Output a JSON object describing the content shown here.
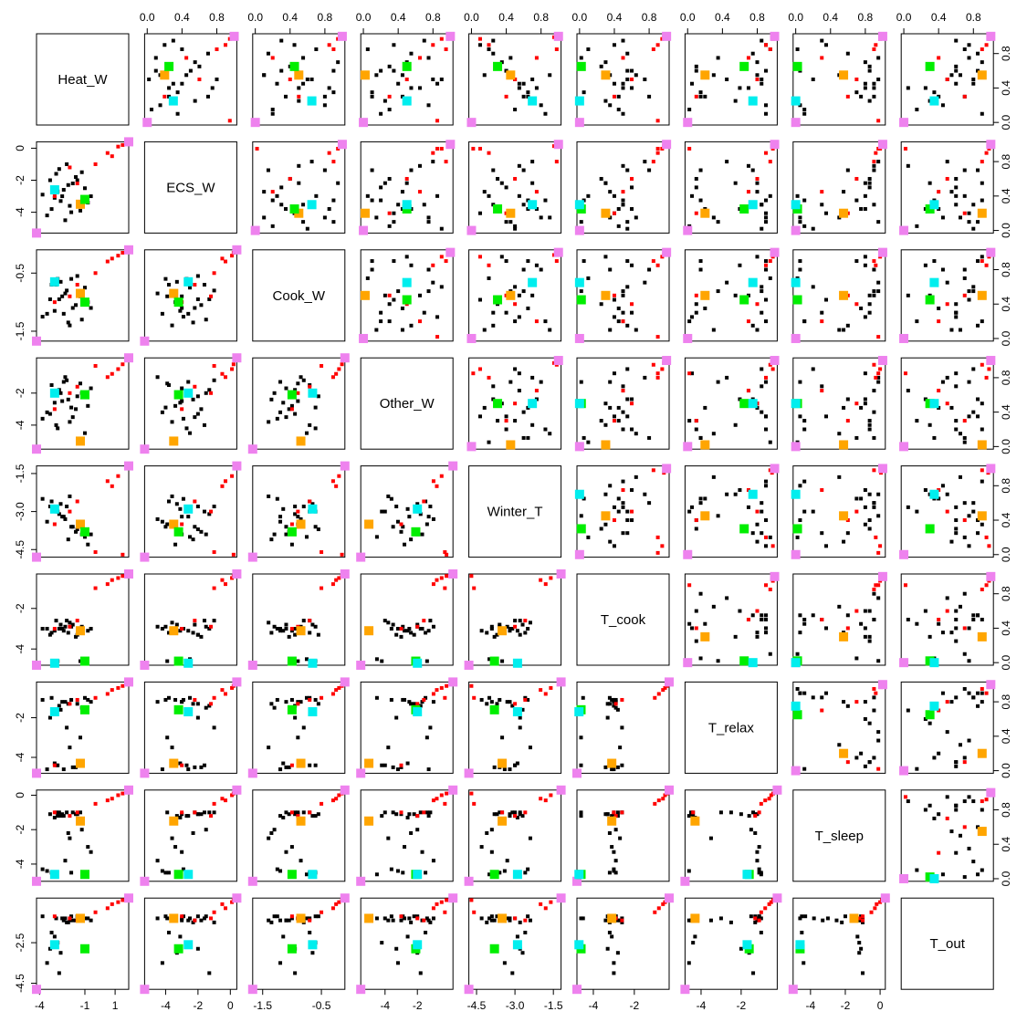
{
  "chart_data": {
    "type": "scatter-matrix",
    "scaled_lim": [
      -0.03,
      1.03
    ],
    "scaled_ticks": [
      {
        "value": 0,
        "label": "0.0"
      },
      {
        "value": 0.4,
        "label": "0.4"
      },
      {
        "value": 0.8,
        "label": "0.8"
      }
    ],
    "variables": [
      {
        "name": "Heat_W",
        "lim": [
          -4.2,
          1.9
        ],
        "ticks": [
          -4,
          -1,
          1
        ]
      },
      {
        "name": "ECS_W",
        "lim": [
          -5.3,
          0.4
        ],
        "ticks": [
          -4,
          -2,
          0
        ]
      },
      {
        "name": "Cook_W",
        "lim": [
          -1.67,
          -0.1
        ],
        "ticks": [
          -1.5,
          -0.5
        ]
      },
      {
        "name": "Other_W",
        "lim": [
          -5.5,
          0.2
        ],
        "ticks": [
          -4,
          -2
        ]
      },
      {
        "name": "Winter_T",
        "lim": [
          -4.8,
          -1.2
        ],
        "ticks": [
          {
            "value": -4.5,
            "label": "-4.5"
          },
          {
            "value": -3,
            "label": "-3.0"
          },
          {
            "value": -1.5,
            "label": "-1.5"
          }
        ]
      },
      {
        "name": "T_cook",
        "lim": [
          -4.8,
          -0.3
        ],
        "ticks": [
          -4,
          -2
        ]
      },
      {
        "name": "T_relax",
        "lim": [
          -4.8,
          -0.2
        ],
        "ticks": [
          -4,
          -2
        ]
      },
      {
        "name": "T_sleep",
        "lim": [
          -5,
          0.3
        ],
        "ticks": [
          -4,
          -2,
          0
        ]
      },
      {
        "name": "T_out",
        "lim": [
          -4.8,
          -0.3
        ],
        "ticks": [
          -4.5,
          -2.5
        ]
      }
    ],
    "groups": [
      {
        "color": "#000000",
        "marker": "small",
        "points": [
          {
            "raw": [
              -2.5,
              -3.0,
              -0.9,
              -2.5,
              -3.2,
              -3.0,
              -1.2,
              -1.1,
              -1.3
            ],
            "scaled": [
              0.45,
              0.3,
              0.55,
              0.4,
              0.6,
              0.5,
              0.85,
              0.9,
              0.8
            ]
          },
          {
            "raw": [
              -1.8,
              -2.2,
              -1.1,
              -3.5,
              -3.6,
              -2.8,
              -4.5,
              -1.0,
              -1.4
            ],
            "scaled": [
              0.6,
              0.5,
              0.3,
              0.2,
              0.4,
              0.6,
              0.1,
              0.85,
              0.6
            ]
          },
          {
            "raw": [
              -3.2,
              -3.8,
              -0.7,
              -1.5,
              -2.6,
              -3.2,
              -1.0,
              -4.5,
              -2.0
            ],
            "scaled": [
              0.2,
              0.15,
              0.8,
              0.75,
              0.8,
              0.35,
              0.9,
              0.05,
              0.45
            ]
          },
          {
            "raw": [
              -1.2,
              -1.5,
              -1.3,
              -2.0,
              -3.9,
              -2.9,
              -1.5,
              -2.0,
              -1.2
            ],
            "scaled": [
              0.8,
              0.7,
              0.15,
              0.55,
              0.25,
              0.55,
              0.75,
              0.6,
              0.85
            ]
          },
          {
            "raw": [
              -2.8,
              -2.7,
              -0.6,
              -4.2,
              -3.0,
              -4.6,
              -4.4,
              -1.2,
              -2.5
            ],
            "scaled": [
              0.35,
              0.35,
              0.9,
              0.1,
              0.65,
              0.05,
              0.15,
              0.7,
              0.35
            ]
          },
          {
            "raw": [
              -0.8,
              -3.4,
              -1.0,
              -2.8,
              -4.3,
              -3.1,
              -1.1,
              -3.0,
              -1.3
            ],
            "scaled": [
              0.9,
              0.2,
              0.45,
              0.35,
              0.1,
              0.4,
              0.9,
              0.35,
              0.75
            ]
          },
          {
            "raw": [
              -2.2,
              -1.0,
              -0.8,
              -1.2,
              -2.8,
              -2.6,
              -2.5,
              -1.0,
              -1.5
            ],
            "scaled": [
              0.5,
              0.8,
              0.65,
              0.8,
              0.7,
              0.75,
              0.45,
              0.95,
              0.5
            ]
          },
          {
            "raw": [
              -3.5,
              -4.2,
              -1.2,
              -3.2,
              -3.4,
              -3.0,
              -4.6,
              -4.4,
              -3.5
            ],
            "scaled": [
              0.15,
              0.05,
              0.2,
              0.3,
              0.5,
              0.45,
              0.02,
              0.1,
              0.15
            ]
          },
          {
            "raw": [
              -1.5,
              -2.0,
              -0.55,
              -2.2,
              -3.7,
              -3.3,
              -1.3,
              -1.1,
              -1.2
            ],
            "scaled": [
              0.7,
              0.55,
              0.95,
              0.5,
              0.35,
              0.3,
              0.8,
              0.8,
              0.9
            ]
          },
          {
            "raw": [
              -2.0,
              -3.6,
              -1.4,
              -3.8,
              -2.4,
              -2.7,
              -3.5,
              -2.5,
              -1.4
            ],
            "scaled": [
              0.55,
              0.15,
              0.1,
              0.15,
              0.9,
              0.65,
              0.3,
              0.5,
              0.65
            ]
          },
          {
            "raw": [
              -2.7,
              -1.3,
              -0.95,
              -1.8,
              -3.1,
              -3.0,
              -1.4,
              -1.0,
              -4.0
            ],
            "scaled": [
              0.4,
              0.75,
              0.5,
              0.65,
              0.55,
              0.5,
              0.7,
              0.9,
              0.05
            ]
          },
          {
            "raw": [
              -1.0,
              -2.5,
              -0.75,
              -4.5,
              -4.0,
              -4.5,
              -1.0,
              -4.6,
              -1.3
            ],
            "scaled": [
              0.85,
              0.4,
              0.7,
              0.05,
              0.2,
              0.1,
              0.95,
              0.02,
              0.7
            ]
          },
          {
            "raw": [
              -3.0,
              -3.1,
              -1.15,
              -2.6,
              -2.9,
              -3.1,
              -4.3,
              -1.3,
              -2.2
            ],
            "scaled": [
              0.3,
              0.25,
              0.35,
              0.45,
              0.65,
              0.45,
              0.2,
              0.75,
              0.4
            ]
          },
          {
            "raw": [
              -2.3,
              -4.5,
              -0.85,
              -1.0,
              -3.3,
              -2.9,
              -1.2,
              -3.8,
              -1.3
            ],
            "scaled": [
              0.5,
              0.02,
              0.6,
              0.9,
              0.5,
              0.55,
              0.85,
              0.2,
              0.8
            ]
          },
          {
            "raw": [
              -1.6,
              -1.8,
              -1.05,
              -3.0,
              -3.8,
              -3.4,
              -4.5,
              -1.1,
              -1.4
            ],
            "scaled": [
              0.65,
              0.6,
              0.4,
              0.3,
              0.3,
              0.25,
              0.1,
              0.85,
              0.6
            ]
          },
          {
            "raw": [
              -2.6,
              -3.3,
              -0.65,
              -2.0,
              -2.7,
              -2.8,
              -1.6,
              -1.2,
              -3.0
            ],
            "scaled": [
              0.4,
              0.25,
              0.85,
              0.55,
              0.75,
              0.6,
              0.6,
              0.8,
              0.25
            ]
          },
          {
            "raw": [
              -3.8,
              -2.9,
              -1.25,
              -3.6,
              -2.5,
              -3.0,
              -1.1,
              -4.3,
              -1.2
            ],
            "scaled": [
              0.1,
              0.35,
              0.2,
              0.2,
              0.85,
              0.5,
              0.9,
              0.1,
              0.9
            ]
          },
          {
            "raw": [
              -1.3,
              -3.9,
              -0.9,
              -1.4,
              -3.5,
              -4.6,
              -3.0,
              -1.0,
              -1.3
            ],
            "scaled": [
              0.75,
              0.1,
              0.55,
              0.75,
              0.45,
              0.02,
              0.35,
              0.95,
              0.75
            ]
          },
          {
            "raw": [
              -2.1,
              -2.3,
              -1.35,
              -2.4,
              -4.1,
              -3.2,
              -1.3,
              -2.2,
              -1.5
            ],
            "scaled": [
              0.55,
              0.45,
              0.1,
              0.45,
              0.15,
              0.35,
              0.8,
              0.55,
              0.55
            ]
          },
          {
            "raw": [
              -2.9,
              -1.6,
              -0.7,
              -4.0,
              -3.0,
              -2.6,
              -4.4,
              -1.0,
              -1.3
            ],
            "scaled": [
              0.3,
              0.7,
              0.8,
              0.1,
              0.6,
              0.8,
              0.15,
              0.9,
              0.7
            ]
          },
          {
            "raw": [
              -0.6,
              -3.0,
              -1.1,
              -1.7,
              -3.9,
              -3.0,
              -1.2,
              -3.3,
              -1.4
            ],
            "scaled": [
              0.95,
              0.3,
              0.3,
              0.7,
              0.25,
              0.5,
              0.85,
              0.3,
              0.6
            ]
          },
          {
            "raw": [
              -3.3,
              -2.0,
              -0.95,
              -3.3,
              -2.8,
              -3.3,
              -2.0,
              -1.1,
              -2.8
            ],
            "scaled": [
              0.25,
              0.55,
              0.5,
              0.25,
              0.7,
              0.3,
              0.55,
              0.85,
              0.3
            ]
          },
          {
            "raw": [
              -1.9,
              -4.0,
              -0.6,
              -2.9,
              -3.6,
              -2.9,
              -1.1,
              -4.5,
              -1.2
            ],
            "scaled": [
              0.6,
              0.1,
              0.9,
              0.35,
              0.4,
              0.55,
              0.9,
              0.05,
              0.85
            ]
          },
          {
            "raw": [
              -2.4,
              -2.6,
              -1.2,
              -1.3,
              -3.2,
              -3.1,
              -4.6,
              -1.2,
              -1.4
            ],
            "scaled": [
              0.45,
              0.4,
              0.25,
              0.85,
              0.55,
              0.4,
              0.05,
              0.8,
              0.6
            ]
          }
        ]
      },
      {
        "color": "#ff0000",
        "marker": "small",
        "points": [
          {
            "raw": [
              1.2,
              0.1,
              -0.2,
              -0.5,
              -1.6,
              -0.5,
              -0.5,
              0.0,
              -0.5
            ],
            "scaled": [
              0.97,
              0.95,
              0.95,
              0.9,
              0.1,
              0.95,
              0.98,
              0.97,
              0.98
            ]
          },
          {
            "raw": [
              0.5,
              -0.3,
              -0.3,
              -1.0,
              -1.8,
              -0.8,
              -0.8,
              -0.3,
              -0.8
            ],
            "scaled": [
              0.9,
              0.9,
              0.85,
              0.8,
              0.2,
              0.9,
              0.9,
              0.92,
              0.95
            ]
          },
          {
            "raw": [
              -0.3,
              -1.0,
              -0.5,
              -0.3,
              -4.6,
              -1.0,
              -1.0,
              -0.5,
              -1.0
            ],
            "scaled": [
              0.85,
              0.8,
              0.9,
              0.95,
              0.98,
              0.85,
              0.95,
              0.9,
              0.9
            ]
          },
          {
            "raw": [
              1.5,
              0.2,
              -0.15,
              -0.2,
              -4.7,
              -0.4,
              -0.4,
              0.1,
              -0.4
            ],
            "scaled": [
              0.99,
              0.98,
              0.97,
              0.97,
              0.95,
              0.97,
              0.97,
              0.98,
              0.97
            ]
          },
          {
            "raw": [
              -2.0,
              -1.2,
              -0.9,
              -2.0,
              -3.0,
              -2.9,
              -1.3,
              -1.2,
              -1.3
            ],
            "scaled": [
              0.5,
              0.6,
              0.4,
              0.5,
              0.5,
              0.6,
              0.8,
              0.7,
              0.5
            ]
          },
          {
            "raw": [
              -3.0,
              -3.0,
              -1.0,
              -3.0,
              -3.5,
              -3.0,
              -4.4,
              -1.0,
              -1.2
            ],
            "scaled": [
              0.3,
              0.2,
              0.5,
              0.3,
              0.4,
              0.4,
              0.1,
              0.6,
              0.7
            ]
          },
          {
            "raw": [
              0.8,
              -0.5,
              -0.25,
              -0.8,
              -2.0,
              -0.6,
              -0.6,
              -0.2,
              -0.6
            ],
            "scaled": [
              0.02,
              0.95,
              0.02,
              0.85,
              0.02,
              0.9,
              0.02,
              0.95,
              0.02
            ]
          },
          {
            "raw": [
              -1.5,
              -2.2,
              -0.7,
              -1.6,
              -2.6,
              -2.6,
              -1.1,
              -1.0,
              -1.4
            ],
            "scaled": [
              0.75,
              0.45,
              0.2,
              0.65,
              0.75,
              0.5,
              0.7,
              0.3,
              0.4
            ]
          }
        ]
      },
      {
        "color": "#ee82ee",
        "marker": "large",
        "points": [
          {
            "raw": [
              1.9,
              0.4,
              -0.1,
              0.2,
              -1.2,
              -0.3,
              -0.2,
              0.3,
              -0.3
            ],
            "scaled": [
              1,
              1,
              1,
              1,
              1,
              1,
              1,
              1,
              1
            ]
          },
          {
            "raw": [
              -4.2,
              -5.3,
              -1.67,
              -5.5,
              -4.8,
              -4.8,
              -4.8,
              -5,
              -4.8
            ],
            "scaled": [
              0,
              0,
              0,
              0,
              0,
              0,
              0,
              0,
              0
            ]
          }
        ]
      },
      {
        "color": "#ffa500",
        "marker": "large",
        "points": [
          {
            "raw": [
              -1.3,
              -3.5,
              -0.85,
              -5.0,
              -3.5,
              -3.1,
              -4.3,
              -1.5,
              -1.3
            ],
            "scaled": [
              0.55,
              0.2,
              0.5,
              0.02,
              0.45,
              0.3,
              0.2,
              0.55,
              0.9
            ]
          }
        ]
      },
      {
        "color": "#00ee00",
        "marker": "large",
        "points": [
          {
            "raw": [
              -1.0,
              -3.2,
              -1.0,
              -2.1,
              -3.8,
              -4.6,
              -1.6,
              -4.6,
              -2.8
            ],
            "scaled": [
              0.65,
              0.25,
              0.45,
              0.5,
              0.3,
              0.02,
              0.65,
              0.02,
              0.3
            ]
          }
        ]
      },
      {
        "color": "#00eeee",
        "marker": "large",
        "points": [
          {
            "raw": [
              -3.0,
              -2.6,
              -0.65,
              -2.0,
              -2.9,
              -4.7,
              -1.7,
              -4.6,
              -2.6
            ],
            "scaled": [
              0.25,
              0.3,
              0.65,
              0.5,
              0.7,
              0.0,
              0.75,
              0.0,
              0.35
            ]
          }
        ]
      }
    ]
  }
}
